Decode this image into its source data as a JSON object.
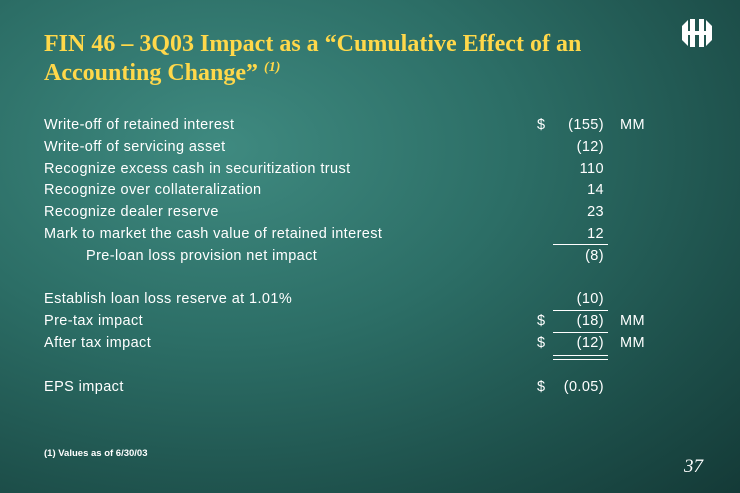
{
  "slide": {
    "title": "FIN 46 – 3Q03 Impact as a “Cumulative Effect of an Accounting Change”",
    "title_note": "(1)",
    "footnote": "(1) Values as of 6/30/03",
    "page_number": "37"
  },
  "rows": [
    {
      "label": "Write-off of retained interest",
      "dollar": "$",
      "value": "(155)",
      "unit": "MM"
    },
    {
      "label": "Write-off of servicing asset",
      "dollar": "",
      "value": "(12)",
      "unit": ""
    },
    {
      "label": "Recognize excess cash in securitization trust",
      "dollar": "",
      "value": "110",
      "unit": ""
    },
    {
      "label": "Recognize over collateralization",
      "dollar": "",
      "value": "14",
      "unit": ""
    },
    {
      "label": "Recognize dealer reserve",
      "dollar": "",
      "value": "23",
      "unit": ""
    },
    {
      "label": "Mark to market the cash value of retained interest",
      "dollar": "",
      "value": "12",
      "unit": ""
    },
    {
      "label": "Pre-loan loss provision net impact",
      "dollar": "",
      "value": "(8)",
      "unit": ""
    },
    {
      "label": "Establish loan loss reserve at 1.01%",
      "dollar": "",
      "value": "(10)",
      "unit": ""
    },
    {
      "label": "Pre-tax impact",
      "dollar": "$",
      "value": "(18)",
      "unit": "MM"
    },
    {
      "label": "After tax impact",
      "dollar": "$",
      "value": "(12)",
      "unit": "MM"
    },
    {
      "label": "EPS impact",
      "dollar": "$",
      "value": "(0.05)",
      "unit": ""
    }
  ],
  "colors": {
    "title": "#ffd84a",
    "text": "#ffffff",
    "background": "#2c6e66"
  },
  "logo": {
    "icon": "hsbc-style-hexagon-logo-icon"
  }
}
